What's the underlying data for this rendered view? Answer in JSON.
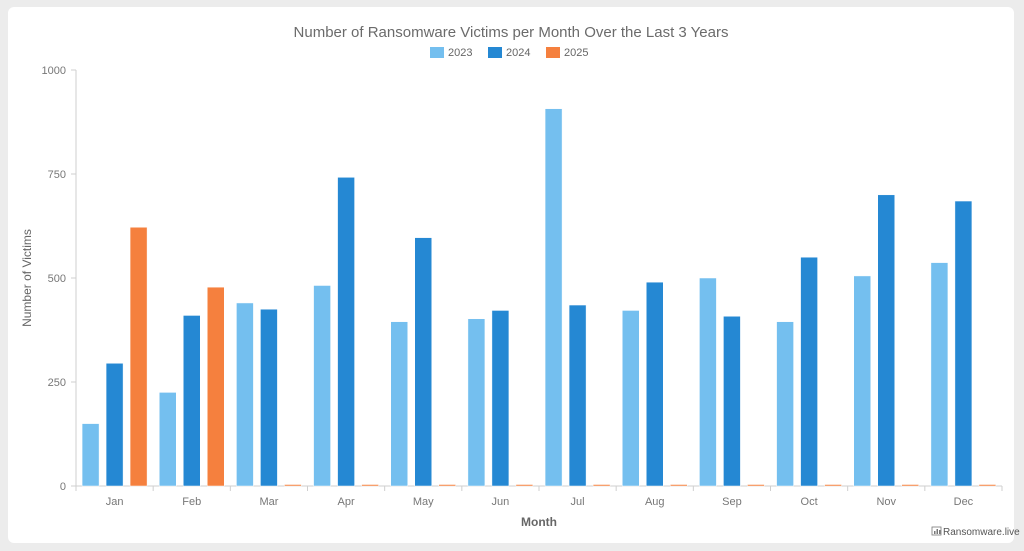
{
  "chart_data": {
    "type": "bar",
    "title": "Number of Ransomware Victims per Month Over the Last 3 Years",
    "xlabel": "Month",
    "ylabel": "Number of Victims",
    "ylim": [
      0,
      1000
    ],
    "yticks": [
      0,
      250,
      500,
      750,
      1000
    ],
    "grid": false,
    "legend": "top-center",
    "categories": [
      "Jan",
      "Feb",
      "Mar",
      "Apr",
      "May",
      "Jun",
      "Jul",
      "Aug",
      "Sep",
      "Oct",
      "Nov",
      "Dec"
    ],
    "series": [
      {
        "name": "2023",
        "color": "#74bfef",
        "values": [
          150,
          225,
          440,
          482,
          395,
          402,
          907,
          422,
          500,
          395,
          505,
          537
        ]
      },
      {
        "name": "2024",
        "color": "#2588d3",
        "values": [
          295,
          410,
          425,
          742,
          597,
          422,
          435,
          490,
          408,
          550,
          700,
          685
        ]
      },
      {
        "name": "2025",
        "color": "#f5803e",
        "values": [
          622,
          478,
          3,
          3,
          3,
          3,
          3,
          3,
          3,
          3,
          3,
          3
        ]
      }
    ]
  },
  "credit": {
    "text": "Ransomware.live",
    "icon": "bar-chart-icon"
  }
}
